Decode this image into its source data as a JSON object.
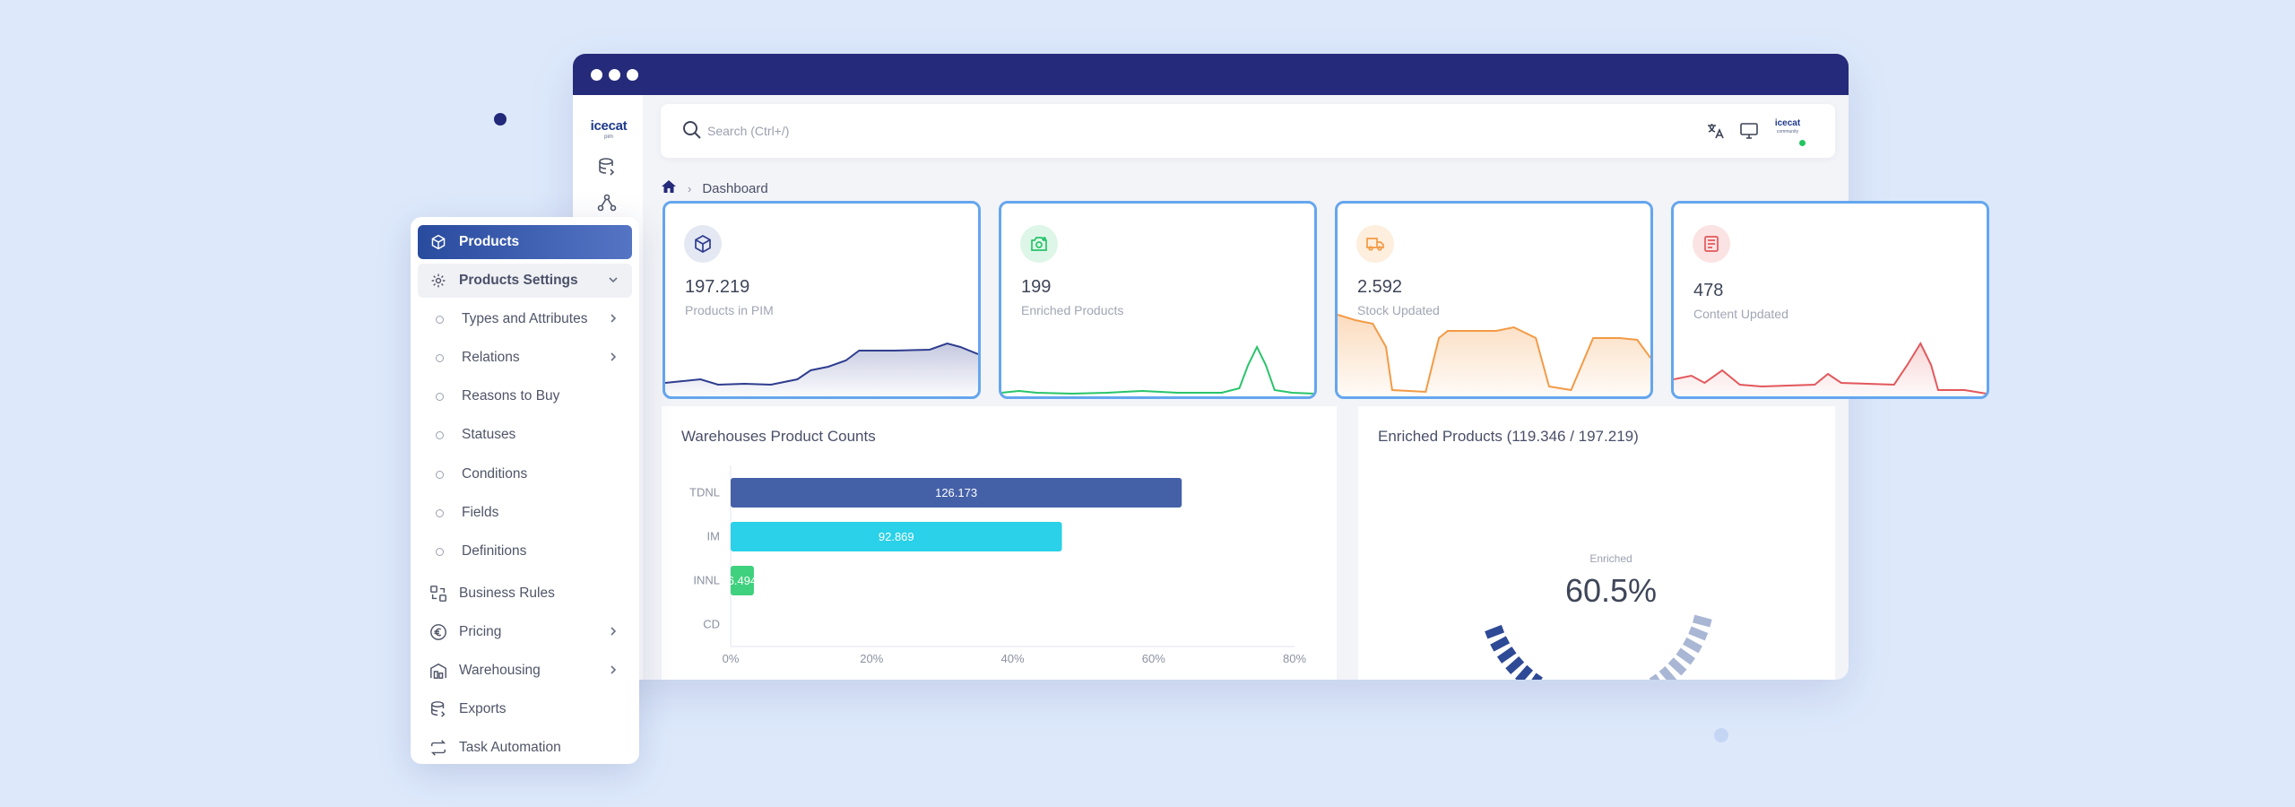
{
  "colors": {
    "navy": "#262a7a",
    "accent": "#65a6ee",
    "bar_blue": "#4461a8",
    "bar_cyan": "#2ad1e8",
    "bar_green": "#3fd17d",
    "spark_blue": "#2f3d8f",
    "spark_green": "#29c46a",
    "spark_orange": "#f39a45",
    "spark_red": "#e2585c"
  },
  "app": {
    "logo": "icecat",
    "logo_sub": "pim"
  },
  "search": {
    "placeholder": "Search (Ctrl+/)"
  },
  "header_icons": [
    "translate-icon",
    "monitor-icon"
  ],
  "account": {
    "logo": "icecat",
    "logo_sub": "community"
  },
  "breadcrumb": {
    "current": "Dashboard"
  },
  "cards": [
    {
      "value": "197.219",
      "label": "Products in PIM",
      "icon": "cube-icon"
    },
    {
      "value": "199",
      "label": "Enriched Products",
      "icon": "camera-plus-icon"
    },
    {
      "value": "2.592",
      "label": "Stock Updated",
      "icon": "truck-icon"
    },
    {
      "value": "478",
      "label": "Content Updated",
      "icon": "document-icon"
    }
  ],
  "warehouse_panel": {
    "title": "Warehouses Product Counts"
  },
  "enriched_panel": {
    "title": "Enriched Products (119.346 / 197.219)",
    "gauge_label": "Enriched",
    "gauge_value": "60.5%"
  },
  "chart_data": [
    {
      "type": "bar",
      "orientation": "horizontal",
      "title": "Warehouses Product Counts",
      "categories": [
        "TDNL",
        "IM",
        "INNL",
        "CD"
      ],
      "values_percent": [
        64,
        47,
        3.3,
        0
      ],
      "data_labels": [
        "126.173",
        "92.869",
        "6.494",
        ""
      ],
      "xlim": [
        0,
        80
      ],
      "x_ticks": [
        "0%",
        "20%",
        "40%",
        "60%",
        "80%"
      ],
      "bar_colors": [
        "#4461a8",
        "#2ad1e8",
        "#3fd17d",
        "#cccccc"
      ]
    },
    {
      "type": "gauge",
      "title": "Enriched Products (119.346 / 197.219)",
      "value": 60.5,
      "label": "Enriched"
    }
  ],
  "menu": {
    "items": [
      {
        "label": "Products",
        "icon": "cube-icon",
        "state": "active"
      },
      {
        "label": "Products Settings",
        "icon": "gear-icon",
        "state": "expanded"
      },
      {
        "label": "Types and Attributes",
        "sub": true,
        "chevron": true
      },
      {
        "label": "Relations",
        "sub": true,
        "chevron": true
      },
      {
        "label": "Reasons to Buy",
        "sub": true
      },
      {
        "label": "Statuses",
        "sub": true
      },
      {
        "label": "Conditions",
        "sub": true
      },
      {
        "label": "Fields",
        "sub": true
      },
      {
        "label": "Definitions",
        "sub": true
      },
      {
        "label": "Business Rules",
        "icon": "business-rules-icon"
      },
      {
        "label": "Pricing",
        "icon": "pricing-icon",
        "chevron": true
      },
      {
        "label": "Warehousing",
        "icon": "warehouse-icon",
        "chevron": true
      },
      {
        "label": "Exports",
        "icon": "database-export-icon"
      },
      {
        "label": "Task Automation",
        "icon": "automation-icon"
      }
    ]
  }
}
